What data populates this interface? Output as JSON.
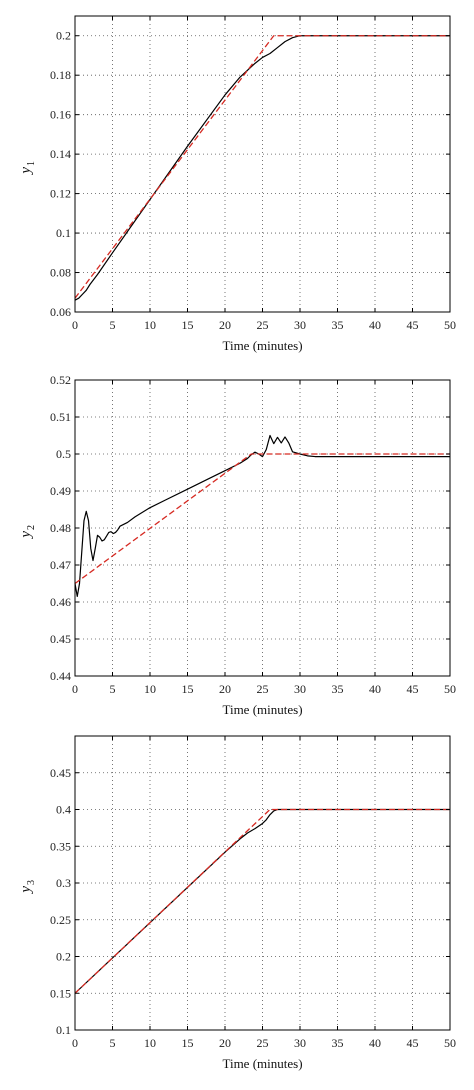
{
  "chart_data": [
    {
      "type": "line",
      "xlabel": "Time (minutes)",
      "ylabel": "y",
      "ylabel_sub": "1",
      "xlim": [
        0,
        50
      ],
      "ylim": [
        0.06,
        0.21
      ],
      "xticks": [
        0,
        5,
        10,
        15,
        20,
        25,
        30,
        35,
        40,
        45,
        50
      ],
      "xtick_labels": [
        "0",
        "5",
        "10",
        "15",
        "20",
        "25",
        "30",
        "35",
        "40",
        "45",
        "50"
      ],
      "yticks": [
        0.06,
        0.08,
        0.1,
        0.12,
        0.14,
        0.16,
        0.18,
        0.2
      ],
      "ytick_labels": [
        "0.06",
        "0.08",
        "0.1",
        "0.12",
        "0.14",
        "0.16",
        "0.18",
        "0.2"
      ],
      "grid": true,
      "series": [
        {
          "style": "solid",
          "color": "#000000",
          "x": [
            0,
            0.5,
            1,
            1.5,
            2,
            3,
            5,
            10,
            15,
            20,
            22,
            24,
            25,
            26,
            27,
            28,
            29,
            30,
            32,
            35,
            40,
            45,
            50
          ],
          "y": [
            0.066,
            0.067,
            0.069,
            0.071,
            0.074,
            0.079,
            0.09,
            0.117,
            0.144,
            0.17,
            0.179,
            0.186,
            0.189,
            0.191,
            0.194,
            0.197,
            0.199,
            0.2,
            0.2,
            0.2,
            0.2,
            0.2,
            0.2
          ]
        },
        {
          "style": "dashed",
          "color": "#d62a22",
          "x": [
            0,
            26.5,
            50
          ],
          "y": [
            0.067,
            0.2,
            0.2
          ]
        }
      ]
    },
    {
      "type": "line",
      "xlabel": "Time (minutes)",
      "ylabel": "y",
      "ylabel_sub": "2",
      "xlim": [
        0,
        50
      ],
      "ylim": [
        0.44,
        0.52
      ],
      "xticks": [
        0,
        5,
        10,
        15,
        20,
        25,
        30,
        35,
        40,
        45,
        50
      ],
      "xtick_labels": [
        "0",
        "5",
        "10",
        "15",
        "20",
        "25",
        "30",
        "35",
        "40",
        "45",
        "50"
      ],
      "yticks": [
        0.44,
        0.45,
        0.46,
        0.47,
        0.48,
        0.49,
        0.5,
        0.51,
        0.52
      ],
      "ytick_labels": [
        "0.44",
        "0.45",
        "0.46",
        "0.47",
        "0.48",
        "0.49",
        "0.5",
        "0.51",
        "0.52"
      ],
      "grid": true,
      "series": [
        {
          "style": "solid",
          "color": "#000000",
          "x": [
            0,
            0.3,
            0.6,
            0.9,
            1.2,
            1.5,
            1.8,
            2.1,
            2.4,
            2.7,
            3.0,
            3.3,
            3.6,
            3.9,
            4.2,
            4.5,
            4.8,
            5.1,
            5.4,
            5.7,
            6.0,
            7,
            8,
            10,
            12,
            15,
            18,
            20,
            22,
            23,
            23.5,
            24,
            24.5,
            25,
            25.5,
            26,
            26.5,
            27,
            27.5,
            28,
            28.5,
            29,
            30,
            31,
            32,
            35,
            40,
            45,
            50
          ],
          "y": [
            0.465,
            0.4615,
            0.465,
            0.4735,
            0.482,
            0.4845,
            0.482,
            0.4745,
            0.4712,
            0.4745,
            0.478,
            0.4775,
            0.4765,
            0.4768,
            0.4778,
            0.4788,
            0.479,
            0.4785,
            0.4788,
            0.4795,
            0.4805,
            0.4815,
            0.483,
            0.4855,
            0.4875,
            0.4905,
            0.4935,
            0.4955,
            0.4975,
            0.4988,
            0.4998,
            0.5005,
            0.5,
            0.4993,
            0.5012,
            0.505,
            0.5028,
            0.5045,
            0.503,
            0.5046,
            0.503,
            0.5006,
            0.5,
            0.4995,
            0.4993,
            0.4993,
            0.4993,
            0.4993,
            0.4993
          ]
        },
        {
          "style": "dashed",
          "color": "#d62a22",
          "x": [
            0,
            23.5,
            50
          ],
          "y": [
            0.465,
            0.5,
            0.5
          ]
        }
      ]
    },
    {
      "type": "line",
      "xlabel": "Time (minutes)",
      "ylabel": "y",
      "ylabel_sub": "3",
      "xlim": [
        0,
        50
      ],
      "ylim": [
        0.1,
        0.5
      ],
      "xticks": [
        0,
        5,
        10,
        15,
        20,
        25,
        30,
        35,
        40,
        45,
        50
      ],
      "xtick_labels": [
        "0",
        "5",
        "10",
        "15",
        "20",
        "25",
        "30",
        "35",
        "40",
        "45",
        "50"
      ],
      "yticks": [
        0.1,
        0.15,
        0.2,
        0.25,
        0.3,
        0.35,
        0.4,
        0.45
      ],
      "ytick_labels": [
        "0.1",
        "0.15",
        "0.2",
        "0.25",
        "0.3",
        "0.35",
        "0.4",
        "0.45"
      ],
      "grid": true,
      "series": [
        {
          "style": "solid",
          "color": "#000000",
          "x": [
            0,
            5,
            10,
            15,
            20,
            22,
            23,
            24,
            25,
            25.5,
            26,
            26.5,
            27,
            30,
            35,
            40,
            45,
            50
          ],
          "y": [
            0.15,
            0.198,
            0.246,
            0.294,
            0.342,
            0.36,
            0.368,
            0.374,
            0.381,
            0.386,
            0.393,
            0.398,
            0.4,
            0.4,
            0.4,
            0.4,
            0.4,
            0.4
          ]
        },
        {
          "style": "dashed",
          "color": "#d62a22",
          "x": [
            0,
            26,
            50
          ],
          "y": [
            0.15,
            0.4,
            0.4
          ]
        }
      ]
    }
  ]
}
